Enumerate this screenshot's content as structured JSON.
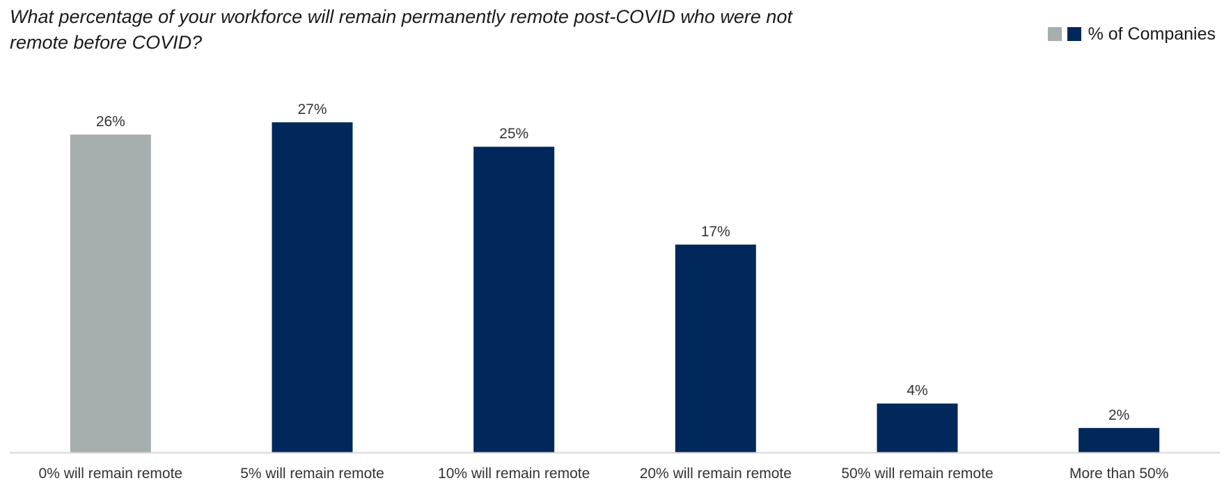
{
  "chart_data": {
    "type": "bar",
    "title": "What percentage of your workforce will remain permanently remote post-COVID who were not remote before COVID?",
    "categories": [
      "0% will remain remote",
      "5% will remain remote",
      "10% will remain remote",
      "20% will remain remote",
      "50% will remain remote",
      "More than 50%"
    ],
    "series": [
      {
        "name": "% of Companies",
        "values": [
          26,
          27,
          25,
          17,
          4,
          2
        ]
      }
    ],
    "data_labels": [
      "26%",
      "27%",
      "25%",
      "17%",
      "4%",
      "2%"
    ],
    "bar_colors": [
      "#a6aeae",
      "#00285a",
      "#00285a",
      "#00285a",
      "#00285a",
      "#00285a"
    ],
    "legend": {
      "position": "top-right",
      "swatch_colors": [
        "#a6aeae",
        "#00285a"
      ]
    },
    "xlabel": "",
    "ylabel": "",
    "ylim": [
      0,
      27
    ],
    "grid": false
  }
}
